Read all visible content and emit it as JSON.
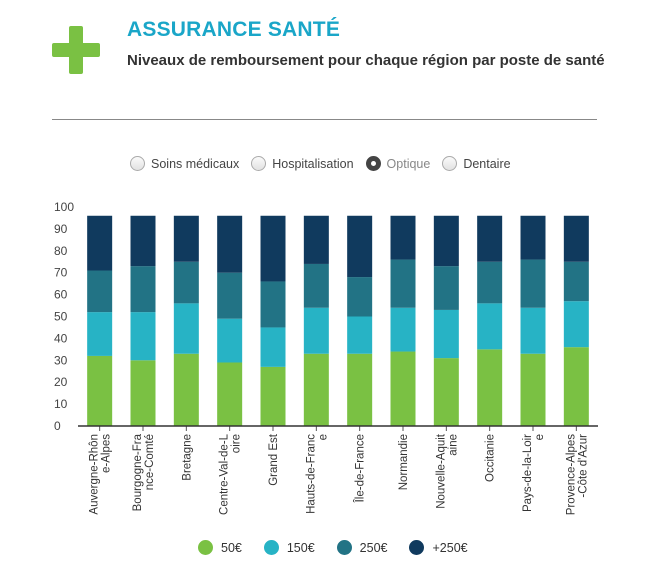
{
  "header": {
    "title": "ASSURANCE SANTÉ",
    "subtitle": "Niveaux de remboursement pour chaque région par poste de santé"
  },
  "filters": {
    "options": [
      "Soins médicaux",
      "Hospitalisation",
      "Optique",
      "Dentaire"
    ],
    "selected": "Optique"
  },
  "colors": {
    "accent": "#1aa6c8",
    "logo": "#7ac143",
    "series": [
      "#7ac143",
      "#27b3c5",
      "#227385",
      "#103a5e"
    ]
  },
  "chart_data": {
    "type": "bar",
    "stacked": true,
    "ylim": [
      0,
      100
    ],
    "yticks": [
      0,
      10,
      20,
      30,
      40,
      50,
      60,
      70,
      80,
      90,
      100
    ],
    "categories": [
      [
        "Auvergne-Rhôn",
        "e-Alpes"
      ],
      [
        "Bourgogne-Fra",
        "nce-Comté"
      ],
      [
        "Bretagne"
      ],
      [
        "Centre-Val-de-L",
        "oire"
      ],
      [
        "Grand Est"
      ],
      [
        "Hauts-de-Franc",
        "e"
      ],
      [
        "Île-de-France"
      ],
      [
        "Normandie"
      ],
      [
        "Nouvelle-Aquit",
        "aine"
      ],
      [
        "Occitanie"
      ],
      [
        "Pays-de-la-Loir",
        "e"
      ],
      [
        "Provence-Alpes",
        "-Côte d'Azur"
      ]
    ],
    "series": [
      {
        "name": "50€",
        "values": [
          32,
          30,
          33,
          29,
          27,
          33,
          33,
          34,
          31,
          35,
          33,
          36
        ]
      },
      {
        "name": "150€",
        "values": [
          20,
          22,
          23,
          20,
          18,
          21,
          17,
          20,
          22,
          21,
          21,
          21
        ]
      },
      {
        "name": "250€",
        "values": [
          19,
          21,
          19,
          21,
          21,
          20,
          18,
          22,
          20,
          19,
          22,
          18
        ]
      },
      {
        "name": "+250€",
        "values": [
          25,
          23,
          21,
          26,
          30,
          22,
          28,
          20,
          23,
          21,
          20,
          21
        ]
      }
    ]
  }
}
